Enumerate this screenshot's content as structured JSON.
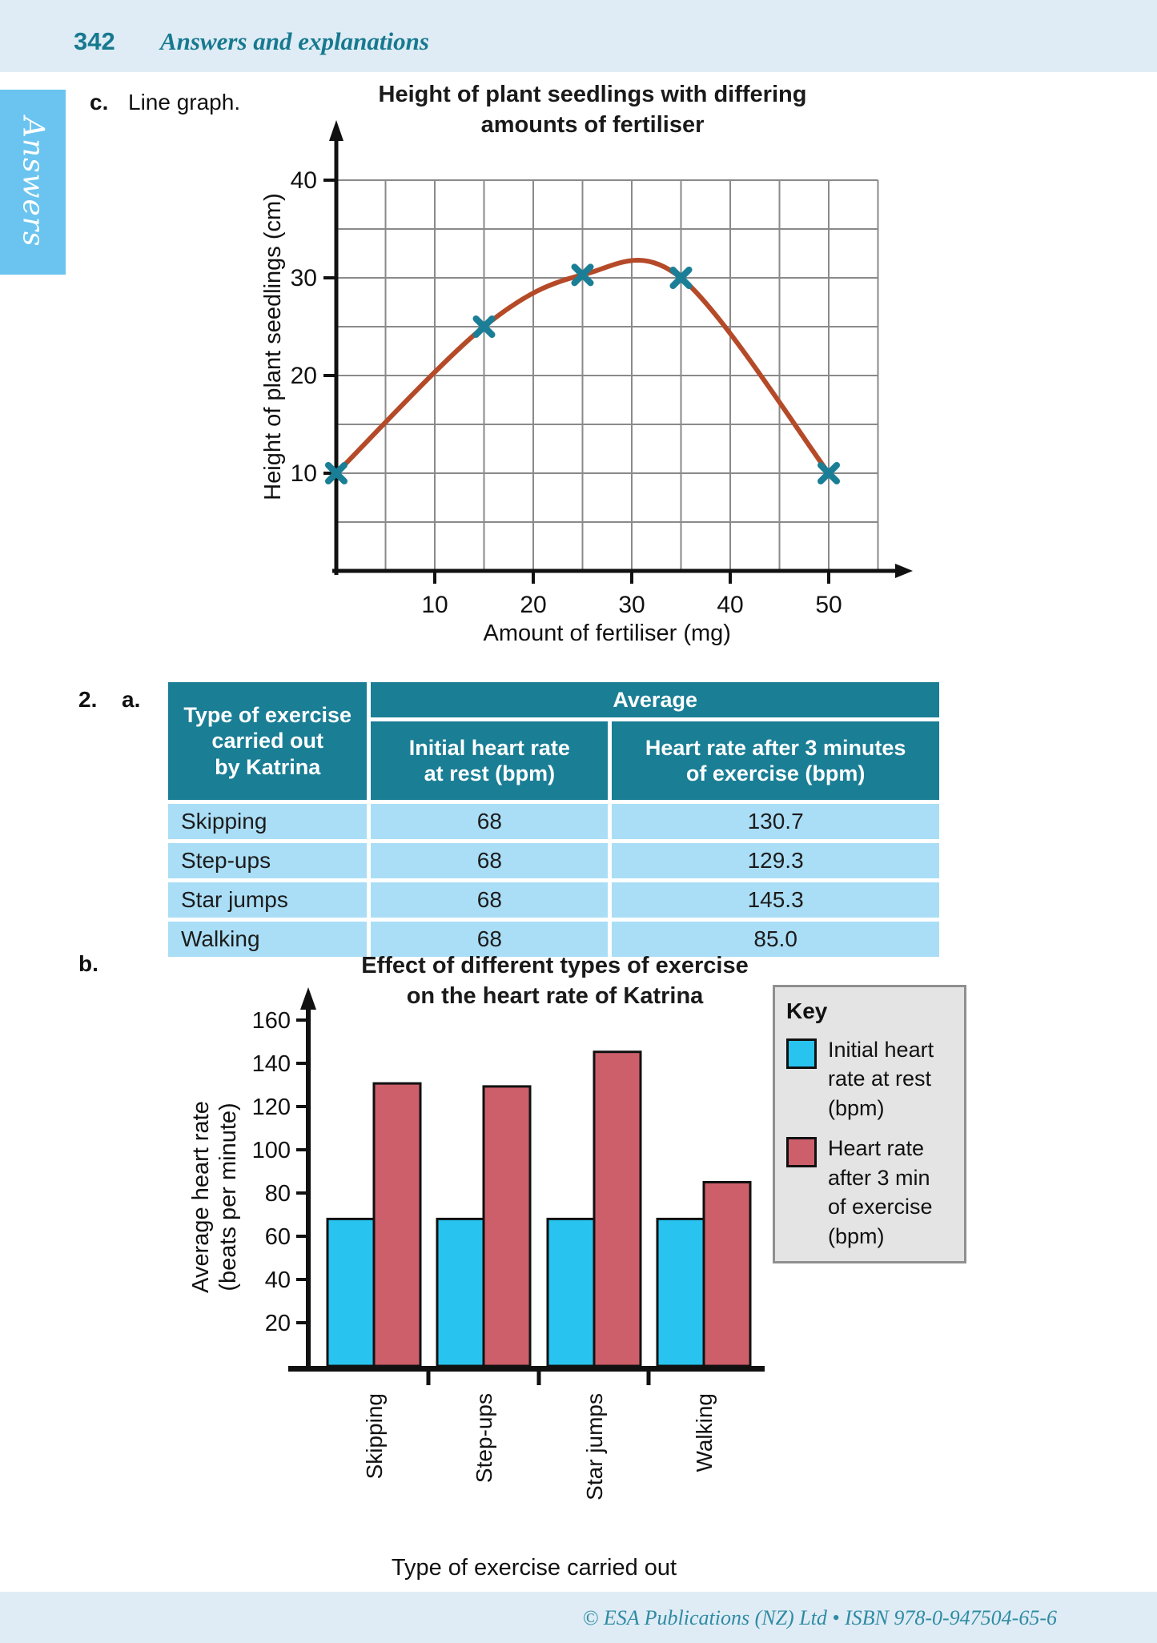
{
  "header": {
    "page_number": "342",
    "title": "Answers and explanations"
  },
  "sidebar_tab": {
    "label": "Answers"
  },
  "sections": {
    "c_label": "c.",
    "c_text": "Line graph.",
    "q2_number": "2.",
    "q2_letter": "a.",
    "b_label": "b."
  },
  "table": {
    "col1_header": "Type of exercise\ncarried out\nby Katrina",
    "span_header": "Average",
    "col2_header": "Initial heart rate\nat rest (bpm)",
    "col3_header": "Heart rate after 3 minutes\nof exercise (bpm)",
    "rows": [
      {
        "exercise": "Skipping",
        "initial": "68",
        "after": "130.7"
      },
      {
        "exercise": "Step-ups",
        "initial": "68",
        "after": "129.3"
      },
      {
        "exercise": "Star jumps",
        "initial": "68",
        "after": "145.3"
      },
      {
        "exercise": "Walking",
        "initial": "68",
        "after": "85.0"
      }
    ]
  },
  "chart_data": [
    {
      "type": "line",
      "title_line1": "Height of plant seedlings with differing",
      "title_line2": "amounts of fertiliser",
      "xlabel": "Amount of fertiliser (mg)",
      "ylabel": "Height of plant seedlings (cm)",
      "x": [
        0,
        15,
        25,
        35,
        50
      ],
      "y": [
        10,
        25,
        30.3,
        30,
        10
      ],
      "xlim": [
        0,
        55
      ],
      "ylim": [
        0,
        40
      ],
      "xticks": [
        10,
        20,
        30,
        40,
        50
      ],
      "yticks": [
        10,
        20,
        30,
        40
      ],
      "grid": true,
      "grid_step": 5,
      "line_color": "#b54a29",
      "marker": "x",
      "marker_color": "#1a7f96"
    },
    {
      "type": "bar",
      "title_line1": "Effect of different types of exercise",
      "title_line2": "on the heart rate of Katrina",
      "xlabel": "Type of exercise carried out",
      "ylabel_line1": "Average heart rate",
      "ylabel_line2": "(beats per minute)",
      "categories": [
        "Skipping",
        "Step-ups",
        "Star jumps",
        "Walking"
      ],
      "series": [
        {
          "name": "Initial heart rate at rest (bpm)",
          "color": "#29c3ef",
          "values": [
            68,
            68,
            68,
            68
          ]
        },
        {
          "name": "Heart rate after 3 min of exercise (bpm)",
          "color": "#cd5f6b",
          "values": [
            130.7,
            129.3,
            145.3,
            85.0
          ]
        }
      ],
      "ylim": [
        0,
        170
      ],
      "yticks": [
        20,
        40,
        60,
        80,
        100,
        120,
        140,
        160
      ],
      "legend_title": "Key",
      "legend_position": "right",
      "grid": false
    }
  ],
  "footer": {
    "text": "© ESA Publications (NZ) Ltd  •  ISBN 978-0-947504-65-6"
  },
  "colors": {
    "header_band": "#dfecf5",
    "teal_text": "#17798f",
    "table_header": "#1a7e95",
    "table_row": "#aadef6",
    "sidebar_tab": "#6ac4ef",
    "key_bg": "#e4e4e4",
    "bar_cyan": "#29c3ef",
    "bar_red": "#cd5f6b",
    "line": "#b54a29",
    "marker": "#1a7f96"
  }
}
